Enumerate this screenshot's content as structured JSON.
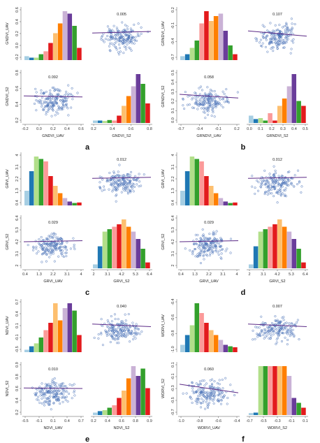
{
  "chart_data": [
    {
      "type": "scatter-matrix",
      "panel_label": "a",
      "x_variable": "GNDVI_UAV",
      "y_variable": "GNDVI_S2",
      "r_top": "0.005",
      "r_bottom": "0.092",
      "uav": {
        "ticks": [
          "-0.2",
          "0.0",
          "0.2",
          "0.4",
          "0.6"
        ],
        "range": [
          -0.25,
          0.62
        ]
      },
      "s2": {
        "ticks": [
          "0.2",
          "0.4",
          "0.6",
          "0.8"
        ],
        "range": [
          0.15,
          0.88
        ]
      },
      "hist_uav": [
        0.08,
        0.05,
        0.05,
        0.12,
        0.18,
        0.35,
        0.55,
        0.75,
        1.0,
        0.95,
        0.7,
        0.25
      ],
      "hist_s2": [
        0.05,
        0.05,
        0.04,
        0.06,
        0.05,
        0.15,
        0.35,
        0.55,
        0.75,
        1.0,
        0.8,
        0.4
      ],
      "trend_top": [
        0.49,
        0.46
      ],
      "trend_bottom": [
        0.49,
        0.51
      ]
    },
    {
      "type": "scatter-matrix",
      "panel_label": "b",
      "x_variable": "GRNDVI_UAV",
      "y_variable": "GRNDVI_S2",
      "r_top": "0.107",
      "r_bottom": "0.058",
      "uav": {
        "ticks": [
          "-0.7",
          "-0.4",
          "-0.1",
          "0.2"
        ],
        "range": [
          -0.78,
          0.42
        ]
      },
      "s2": {
        "ticks": [
          "0.0",
          "0.1",
          "0.2",
          "0.3",
          "0.4",
          "0.5"
        ],
        "range": [
          -0.03,
          0.55
        ]
      },
      "hist_uav": [
        0.08,
        0.12,
        0.25,
        0.4,
        0.75,
        1.0,
        0.8,
        0.9,
        0.95,
        0.6,
        0.3,
        0.12
      ],
      "hist_s2": [
        0.15,
        0.08,
        0.1,
        0.05,
        0.2,
        0.05,
        0.35,
        0.5,
        0.75,
        1.0,
        0.45,
        0.35
      ],
      "trend_top": [
        0.45,
        0.55
      ],
      "trend_bottom": [
        0.46,
        0.53
      ]
    },
    {
      "type": "scatter-matrix",
      "panel_label": "c",
      "x_variable": "GRVI_UAV",
      "y_variable": "GRVI_S2",
      "r_top": "0.012",
      "r_bottom": "0.029",
      "uav": {
        "ticks": [
          "0.4",
          "1.3",
          "2.2",
          "3.1",
          "4"
        ],
        "range": [
          0.3,
          4.1
        ]
      },
      "s2": {
        "ticks": [
          "2",
          "3.1",
          "4.2",
          "5.3",
          "6.4"
        ],
        "range": [
          1.8,
          6.6
        ]
      },
      "hist_uav": [
        0.3,
        0.7,
        1.0,
        0.95,
        0.9,
        0.6,
        0.4,
        0.25,
        0.15,
        0.08,
        0.05,
        0.06
      ],
      "hist_s2": [
        0.08,
        0.45,
        0.75,
        0.8,
        0.85,
        0.9,
        1.0,
        0.85,
        0.75,
        0.6,
        0.4,
        0.12
      ],
      "trend_top": [
        0.49,
        0.47
      ],
      "trend_bottom": [
        0.5,
        0.48
      ]
    },
    {
      "type": "scatter-matrix",
      "panel_label": "d",
      "x_variable": "GRVI_UAV",
      "y_variable": "GRVI_S2",
      "r_top": "0.012",
      "r_bottom": "0.029",
      "uav": {
        "ticks": [
          "0.4",
          "1.3",
          "2.2",
          "3.1",
          "4"
        ],
        "range": [
          0.3,
          4.1
        ]
      },
      "s2": {
        "ticks": [
          "2",
          "3.1",
          "4.2",
          "5.3",
          "6.4"
        ],
        "range": [
          1.8,
          6.6
        ]
      },
      "hist_uav": [
        0.3,
        0.7,
        1.0,
        0.95,
        0.9,
        0.6,
        0.4,
        0.25,
        0.15,
        0.08,
        0.05,
        0.06
      ],
      "hist_s2": [
        0.08,
        0.45,
        0.75,
        0.8,
        0.85,
        0.9,
        1.0,
        0.85,
        0.75,
        0.6,
        0.4,
        0.12
      ],
      "trend_top": [
        0.49,
        0.47
      ],
      "trend_bottom": [
        0.5,
        0.48
      ]
    },
    {
      "type": "scatter-matrix",
      "panel_label": "e",
      "x_variable": "NDVI_UAV",
      "y_variable": "NDVI_S2",
      "r_top": "0.040",
      "r_bottom": "0.010",
      "uav": {
        "ticks": [
          "-0.5",
          "-0.1",
          "0.1",
          "0.4",
          "0.7"
        ],
        "range": [
          -0.6,
          0.88
        ]
      },
      "s2": {
        "ticks": [
          "0.2",
          "0.4",
          "0.6",
          "0.8",
          "0.9"
        ],
        "range": [
          0.15,
          0.95
        ]
      },
      "hist_uav": [
        0.05,
        0.12,
        0.18,
        0.3,
        0.45,
        0.6,
        1.0,
        0.65,
        0.9,
        1.0,
        0.85,
        0.35
      ],
      "hist_s2": [
        0.05,
        0.08,
        0.1,
        0.15,
        0.2,
        0.35,
        0.5,
        0.75,
        1.0,
        0.8,
        0.95,
        0.55
      ],
      "trend_top": [
        0.47,
        0.52
      ],
      "trend_bottom": [
        0.49,
        0.5
      ]
    },
    {
      "type": "scatter-matrix",
      "panel_label": "f",
      "x_variable": "WDRVI_UAV",
      "y_variable": "WDRVI_S2",
      "r_top": "0.007",
      "r_bottom": "0.060",
      "uav": {
        "ticks": [
          "-1.0",
          "-0.8",
          "-0.6",
          "-0.4"
        ],
        "range": [
          -1.06,
          -0.3
        ]
      },
      "s2": {
        "ticks": [
          "-0.7",
          "-0.5",
          "-0.3",
          "-0.1",
          "0.1"
        ],
        "range": [
          -0.78,
          0.18
        ]
      },
      "hist_uav": [
        0.15,
        0.35,
        0.55,
        1.0,
        0.8,
        0.6,
        0.45,
        0.35,
        0.25,
        0.15,
        0.12,
        0.1
      ],
      "hist_s2": [
        0.04,
        0.05,
        1.0,
        1.0,
        1.0,
        1.0,
        1.0,
        1.0,
        0.8,
        0.35,
        0.25,
        0.15
      ],
      "trend_top": [
        0.47,
        0.52
      ],
      "trend_bottom": [
        0.42,
        0.58
      ]
    }
  ],
  "bar_colors": [
    "#a6cee3",
    "#1f78b4",
    "#b2df8a",
    "#33a02c",
    "#fb9a99",
    "#e31a1c",
    "#fdbf6f",
    "#ff7f00",
    "#cab2d6",
    "#6a3d9a",
    "#33a02c",
    "#e31a1c"
  ],
  "point_color": "#4a72b8",
  "trend_color": "#5b2a86"
}
